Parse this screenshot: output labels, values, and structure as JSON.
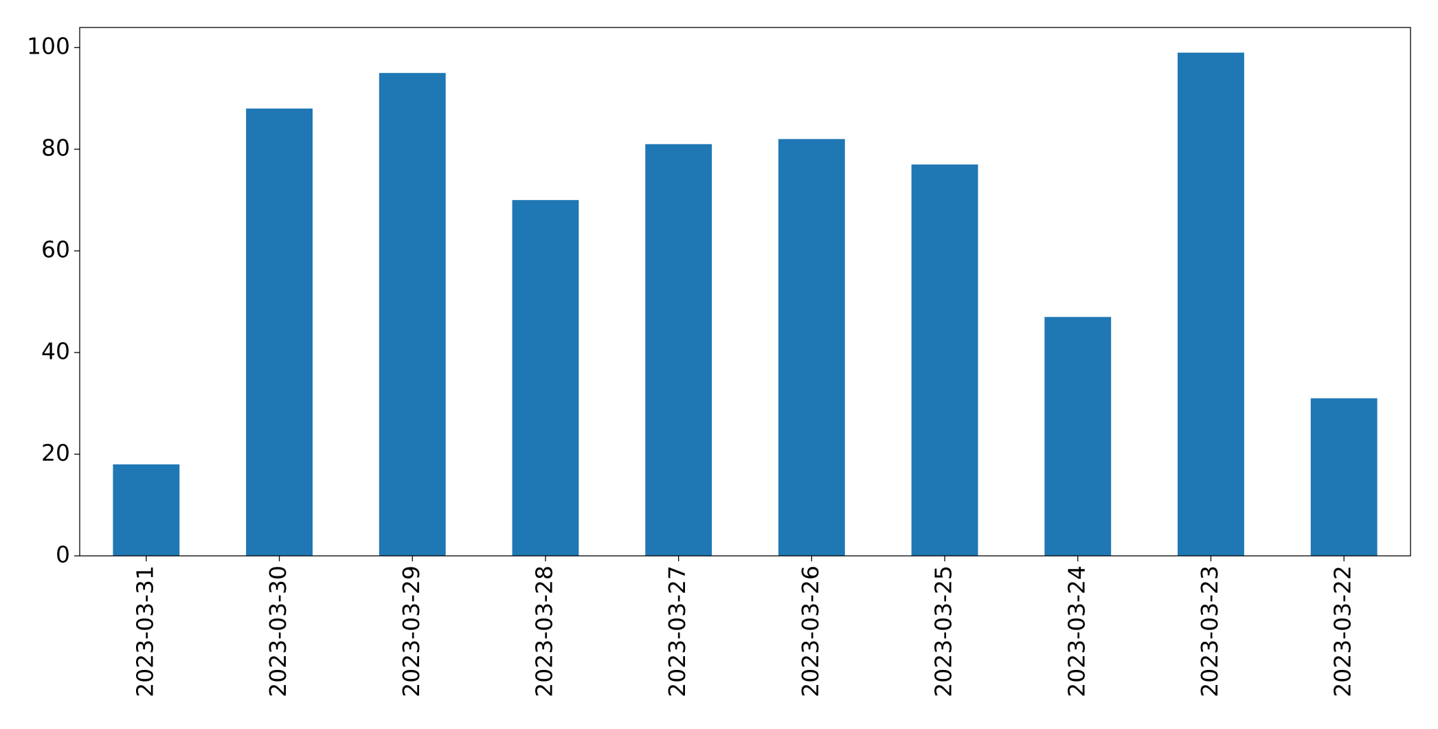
{
  "chart_data": {
    "type": "bar",
    "categories": [
      "2023-03-31",
      "2023-03-30",
      "2023-03-29",
      "2023-03-28",
      "2023-03-27",
      "2023-03-26",
      "2023-03-25",
      "2023-03-24",
      "2023-03-23",
      "2023-03-22"
    ],
    "values": [
      18,
      88,
      95,
      70,
      81,
      82,
      77,
      47,
      99,
      31
    ],
    "color": "#1f77b4",
    "ylim": [
      0,
      103.95
    ],
    "yticks": [
      0,
      20,
      40,
      60,
      80,
      100
    ],
    "grid": false
  }
}
